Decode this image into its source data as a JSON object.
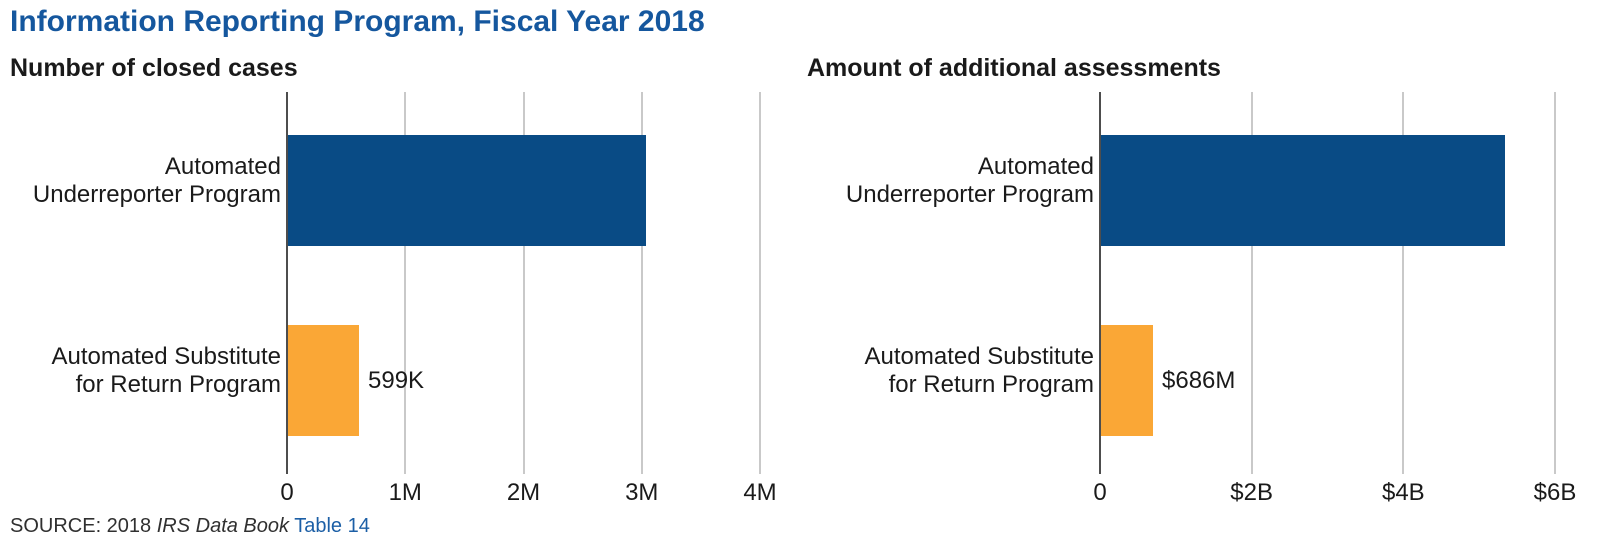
{
  "title": "Information Reporting Program, Fiscal Year 2018",
  "source": {
    "prefix": "SOURCE: 2018 ",
    "italic_text": "IRS Data Book",
    "link_text": "Table 14"
  },
  "colors": {
    "title_blue": "#15579E",
    "bar_navy": "#094B85",
    "bar_orange": "#FAA736",
    "gridline": "#C9C9C9",
    "axis_line": "#4D4D4D",
    "text": "#1A1A1A",
    "link_blue": "#1C5FA6"
  },
  "chart_data": [
    {
      "type": "bar",
      "orientation": "horizontal",
      "title": "Number of closed cases",
      "categories": [
        [
          "Automated",
          "Underreporter Program"
        ],
        [
          "Automated Substitute",
          "for Return Program"
        ]
      ],
      "values": [
        3030000,
        599000
      ],
      "value_labels": [
        "",
        "599K"
      ],
      "bar_colors": [
        "navy",
        "orange"
      ],
      "xlim": [
        0,
        4000000
      ],
      "ticks": [
        0,
        1000000,
        2000000,
        3000000,
        4000000
      ],
      "tick_labels": [
        "0",
        "1M",
        "2M",
        "3M",
        "4M"
      ],
      "grid": true,
      "legend": "none"
    },
    {
      "type": "bar",
      "orientation": "horizontal",
      "title": "Amount of additional assessments",
      "categories": [
        [
          "Automated",
          "Underreporter Program"
        ],
        [
          "Automated Substitute",
          "for Return Program"
        ]
      ],
      "values": [
        5330000000,
        686000000
      ],
      "value_labels": [
        "",
        "$686M"
      ],
      "bar_colors": [
        "navy",
        "orange"
      ],
      "xlim": [
        0,
        6000000000
      ],
      "ticks": [
        0,
        2000000000,
        4000000000,
        6000000000
      ],
      "tick_labels": [
        "0",
        "$2B",
        "$4B",
        "$6B"
      ],
      "grid": true,
      "legend": "none"
    }
  ]
}
